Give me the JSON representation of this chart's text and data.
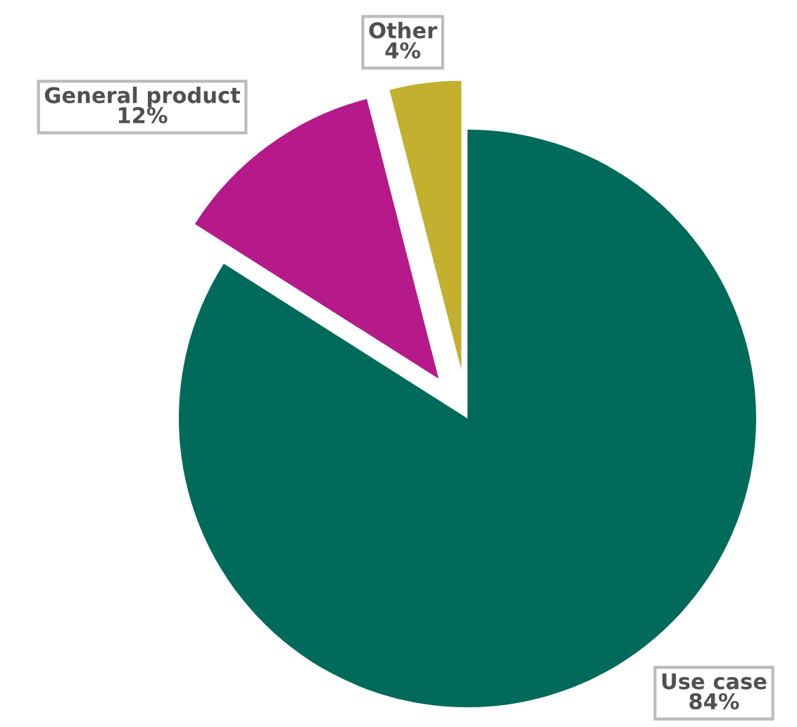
{
  "chart_data": {
    "type": "pie",
    "categories": [
      "Use case",
      "General product",
      "Other"
    ],
    "values": [
      84,
      12,
      4
    ],
    "colors": [
      "#006b5a",
      "#b5198a",
      "#c2b02e"
    ],
    "value_labels": [
      "84%",
      "12%",
      "4%"
    ]
  }
}
